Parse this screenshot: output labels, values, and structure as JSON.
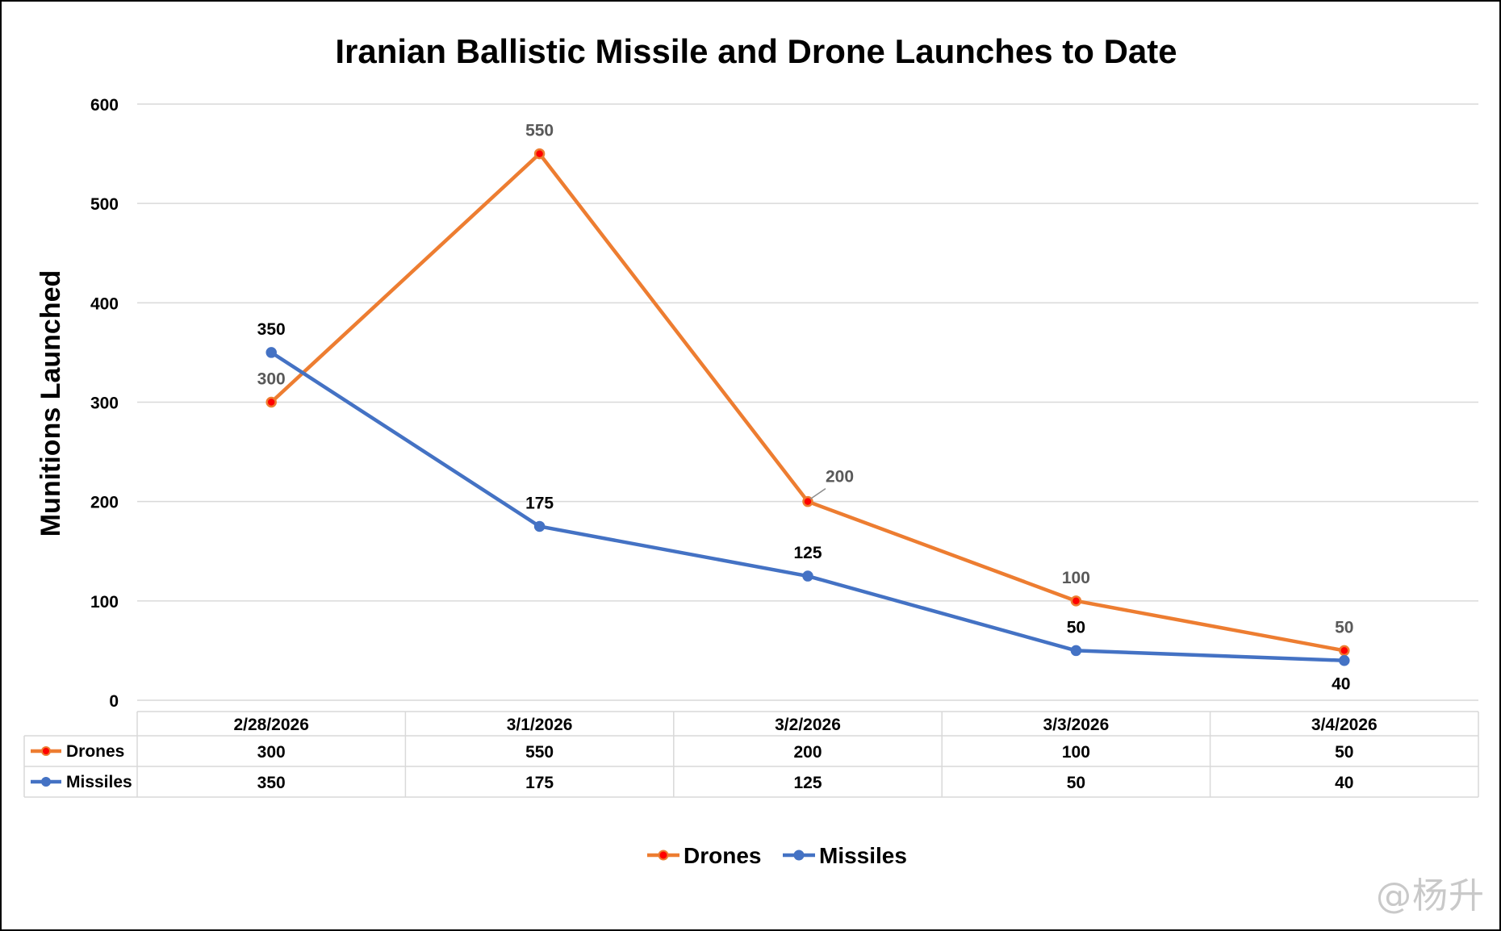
{
  "chart_data": {
    "type": "line",
    "title": "Iranian Ballistic Missile and Drone Launches to Date",
    "xlabel": "",
    "ylabel": "Munitions Launched",
    "categories": [
      "2/28/2026",
      "3/1/2026",
      "3/2/2026",
      "3/3/2026",
      "3/4/2026"
    ],
    "series": [
      {
        "name": "Drones",
        "values": [
          300,
          550,
          200,
          100,
          50
        ],
        "color": "#ED7D31",
        "marker_color": "#FF0000"
      },
      {
        "name": "Missiles",
        "values": [
          350,
          175,
          125,
          50,
          40
        ],
        "color": "#4472C4",
        "marker_color": "#4472C4"
      }
    ],
    "ylim": [
      0,
      600
    ],
    "yticks": [
      0,
      100,
      200,
      300,
      400,
      500,
      600
    ],
    "grid": true,
    "data_table": true,
    "legend_position": "bottom"
  },
  "watermark": "@杨升"
}
